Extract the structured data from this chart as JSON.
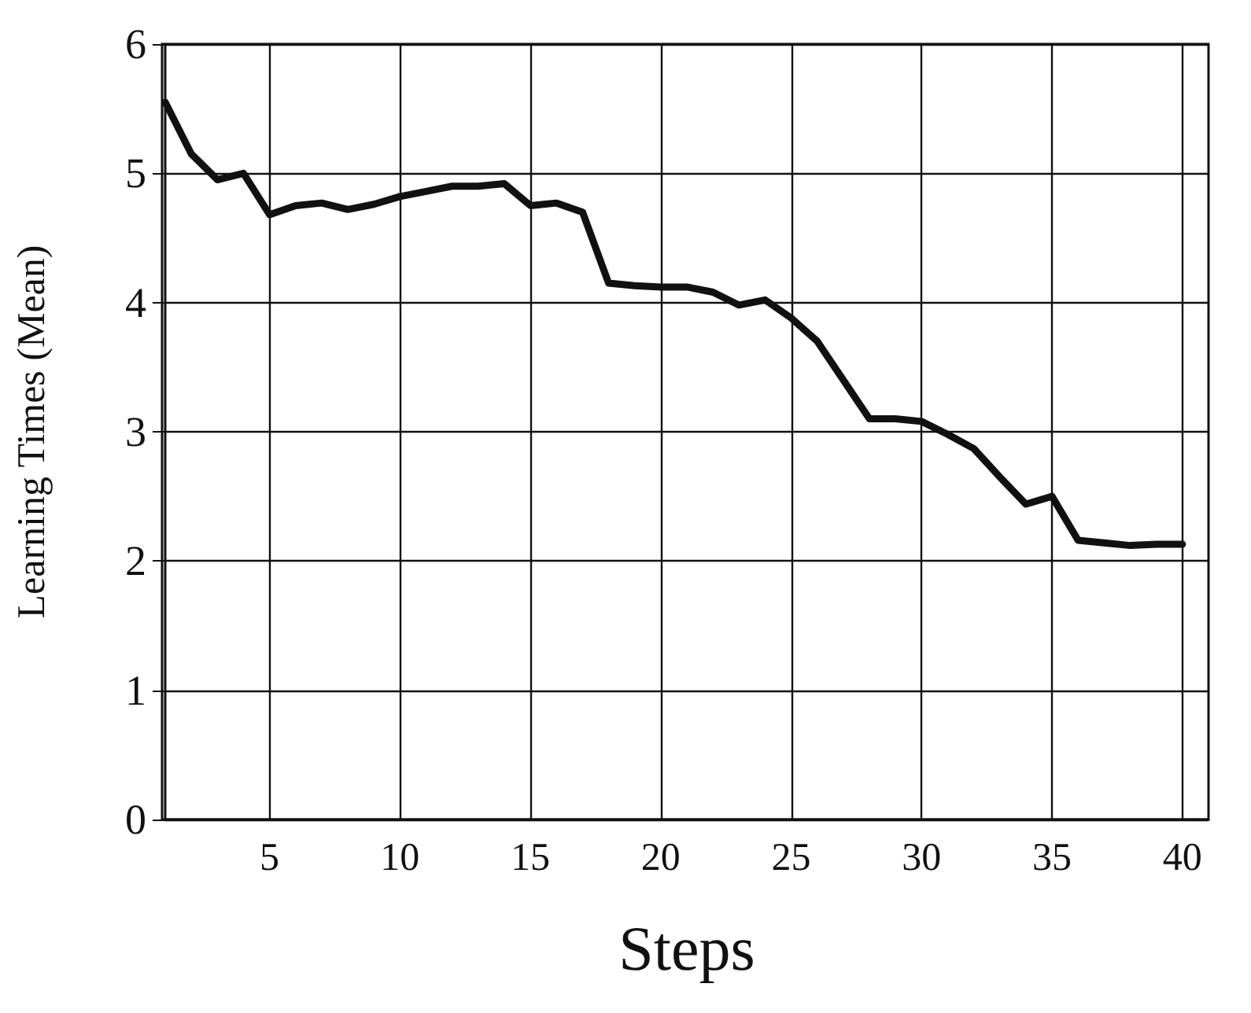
{
  "chart_data": {
    "type": "line",
    "xlabel": "Steps",
    "ylabel": "Learning Times (Mean)",
    "x": [
      1,
      2,
      3,
      4,
      5,
      6,
      7,
      8,
      9,
      10,
      11,
      12,
      13,
      14,
      15,
      16,
      17,
      18,
      19,
      20,
      21,
      22,
      23,
      24,
      25,
      26,
      27,
      28,
      29,
      30,
      31,
      32,
      33,
      34,
      35,
      36,
      37,
      38,
      39,
      40
    ],
    "series": [
      {
        "color": "#111111",
        "values": [
          5.55,
          5.15,
          4.95,
          5.0,
          4.68,
          4.75,
          4.77,
          4.72,
          4.76,
          4.82,
          4.86,
          4.9,
          4.9,
          4.92,
          4.75,
          4.77,
          4.7,
          4.15,
          4.13,
          4.12,
          4.12,
          4.08,
          3.98,
          4.02,
          3.88,
          3.7,
          3.4,
          3.1,
          3.1,
          3.08,
          2.98,
          2.87,
          2.65,
          2.44,
          2.5,
          2.16,
          2.14,
          2.12,
          2.13,
          2.13
        ]
      }
    ],
    "xlim": [
      1,
      41
    ],
    "xticks": [
      5,
      10,
      15,
      20,
      25,
      30,
      35,
      40
    ],
    "ylim": [
      0,
      6
    ],
    "yticks": [
      0,
      1,
      2,
      3,
      4,
      5,
      6
    ],
    "grid": true,
    "marker": "none",
    "line_style": "solid"
  }
}
